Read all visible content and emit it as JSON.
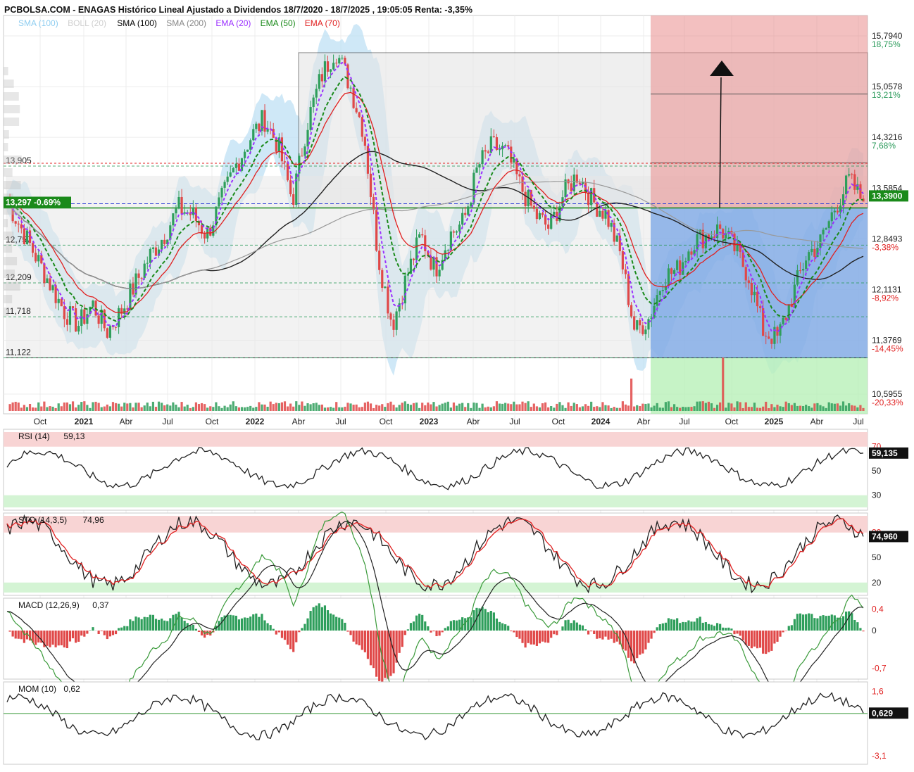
{
  "title": "PCBOLSA.COM - ENAGAS Histórico Lineal Ajustado a Dividendos 18/7/2020 - 18/7/2025 , 19:05:05 Renta: -3,35%",
  "legend": [
    {
      "label": "SMA (100)",
      "color": "#8ecdf0"
    },
    {
      "label": "BOLL (20)",
      "color": "#cfcfcf"
    },
    {
      "label": "SMA (100)",
      "color": "#000000"
    },
    {
      "label": "SMA (200)",
      "color": "#888888"
    },
    {
      "label": "EMA (20)",
      "color": "#9b30ff"
    },
    {
      "label": "EMA (50)",
      "color": "#1a8a1a"
    },
    {
      "label": "EMA (70)",
      "color": "#e02020"
    }
  ],
  "price_axis": [
    {
      "price": "15,7940",
      "pct": "18,75%",
      "color": "#2a9a5a"
    },
    {
      "price": "15,0578",
      "pct": "13,21%",
      "color": "#2a9a5a"
    },
    {
      "price": "14,3216",
      "pct": "7,68%",
      "color": "#2a9a5a"
    },
    {
      "price": "13,5854",
      "pct": "2,14%",
      "color": "#2a9a5a"
    },
    {
      "price": "12,8493",
      "pct": "-3,38%",
      "color": "#e02020"
    },
    {
      "price": "12,1131",
      "pct": "-8,92%",
      "color": "#e02020"
    },
    {
      "price": "11,3769",
      "pct": "-14,45%",
      "color": "#e02020"
    },
    {
      "price": "10,5955",
      "pct": "-20,33%",
      "color": "#e02020"
    }
  ],
  "level_labels": [
    {
      "text": "13,905",
      "price": 13.905
    },
    {
      "text": "12,757",
      "price": 12.757
    },
    {
      "text": "12,209",
      "price": 12.209
    },
    {
      "text": "11,718",
      "price": 11.718
    },
    {
      "text": "11,122",
      "price": 11.122
    }
  ],
  "current_label": "13,297  -0.69%",
  "last_price_label": "13,3900",
  "time_axis": [
    {
      "text": "Oct",
      "bold": false
    },
    {
      "text": "2021",
      "bold": true
    },
    {
      "text": "Abr",
      "bold": false
    },
    {
      "text": "Jul",
      "bold": false
    },
    {
      "text": "Oct",
      "bold": false
    },
    {
      "text": "2022",
      "bold": true
    },
    {
      "text": "Abr",
      "bold": false
    },
    {
      "text": "Jul",
      "bold": false
    },
    {
      "text": "Oct",
      "bold": false
    },
    {
      "text": "2023",
      "bold": true
    },
    {
      "text": "Abr",
      "bold": false
    },
    {
      "text": "Jul",
      "bold": false
    },
    {
      "text": "Oct",
      "bold": false
    },
    {
      "text": "2024",
      "bold": true
    },
    {
      "text": "Abr",
      "bold": false
    },
    {
      "text": "Jul",
      "bold": false
    },
    {
      "text": "Oct",
      "bold": false
    },
    {
      "text": "2025",
      "bold": true
    },
    {
      "text": "Abr",
      "bold": false
    },
    {
      "text": "Jul",
      "bold": false
    }
  ],
  "panels": {
    "rsi": {
      "label": "RSI (14)",
      "value": "59,13",
      "badge": "59,135",
      "levels": [
        "70",
        "50",
        "30"
      ]
    },
    "sto": {
      "label": "STO (14,3,5)",
      "value": "74,96",
      "badge": "74,960",
      "levels": [
        "80",
        "50",
        "20"
      ]
    },
    "macd": {
      "label": "MACD (12,26,9)",
      "value": "0,37",
      "levels": [
        "0,4",
        "0",
        "-0,7"
      ]
    },
    "mom": {
      "label": "MOM (10)",
      "value": "0,62",
      "badge": "0,629",
      "levels": [
        "1,6",
        "0",
        "-3,1"
      ]
    }
  },
  "colors": {
    "up": "#2e9e5b",
    "down": "#e04848",
    "ema20": "#9b30ff",
    "ema50": "#1a8a1a",
    "ema70": "#e02020",
    "sma100": "#222222",
    "sma200": "#999999",
    "boll": "#bfe0f4",
    "target_box": "#e98c8c",
    "stop_box": "#b8f0b8",
    "blue_box": "#6f9fe6"
  },
  "chart_data": {
    "type": "line",
    "title": "PCBOLSA.COM - ENAGAS Histórico Lineal Ajustado a Dividendos 18/7/2020 - 18/7/2025 , 19:05:05 Renta: -3,35%",
    "x": [
      "2020-07",
      "2020-08",
      "2020-09",
      "2020-10",
      "2020-11",
      "2020-12",
      "2021-01",
      "2021-02",
      "2021-03",
      "2021-04",
      "2021-05",
      "2021-06",
      "2021-07",
      "2021-08",
      "2021-09",
      "2021-10",
      "2021-11",
      "2021-12",
      "2022-01",
      "2022-02",
      "2022-03",
      "2022-04",
      "2022-05",
      "2022-06",
      "2022-07",
      "2022-08",
      "2022-09",
      "2022-10",
      "2022-11",
      "2022-12",
      "2023-01",
      "2023-02",
      "2023-03",
      "2023-04",
      "2023-05",
      "2023-06",
      "2023-07",
      "2023-08",
      "2023-09",
      "2023-10",
      "2023-11",
      "2023-12",
      "2024-01",
      "2024-02",
      "2024-03",
      "2024-04",
      "2024-05",
      "2024-06",
      "2024-07",
      "2024-08",
      "2024-09",
      "2024-10",
      "2024-11",
      "2024-12",
      "2025-01",
      "2025-02",
      "2025-03",
      "2025-04",
      "2025-05",
      "2025-06",
      "2025-07"
    ],
    "series": [
      {
        "name": "ENAGAS",
        "values": [
          13.4,
          13.0,
          12.6,
          12.2,
          11.8,
          11.6,
          11.9,
          11.5,
          11.8,
          12.2,
          12.6,
          12.9,
          13.3,
          13.2,
          12.9,
          13.4,
          13.9,
          14.3,
          14.6,
          14.2,
          13.4,
          14.5,
          15.2,
          15.6,
          15.1,
          14.4,
          12.6,
          11.6,
          12.3,
          12.9,
          12.4,
          12.9,
          13.1,
          13.9,
          14.2,
          14.1,
          13.6,
          13.2,
          13.0,
          13.5,
          13.8,
          13.4,
          13.2,
          12.6,
          11.5,
          11.7,
          12.3,
          12.4,
          12.8,
          12.9,
          13.0,
          12.7,
          12.3,
          11.5,
          11.4,
          12.0,
          12.6,
          12.8,
          13.3,
          13.7,
          13.39
        ]
      }
    ],
    "ylim": [
      10.5955,
      15.794
    ],
    "ylabel": "",
    "xlabel": "",
    "levels": [
      13.905,
      12.757,
      12.209,
      11.718,
      11.122
    ],
    "current": 13.297,
    "last": 13.39,
    "grid": true
  }
}
